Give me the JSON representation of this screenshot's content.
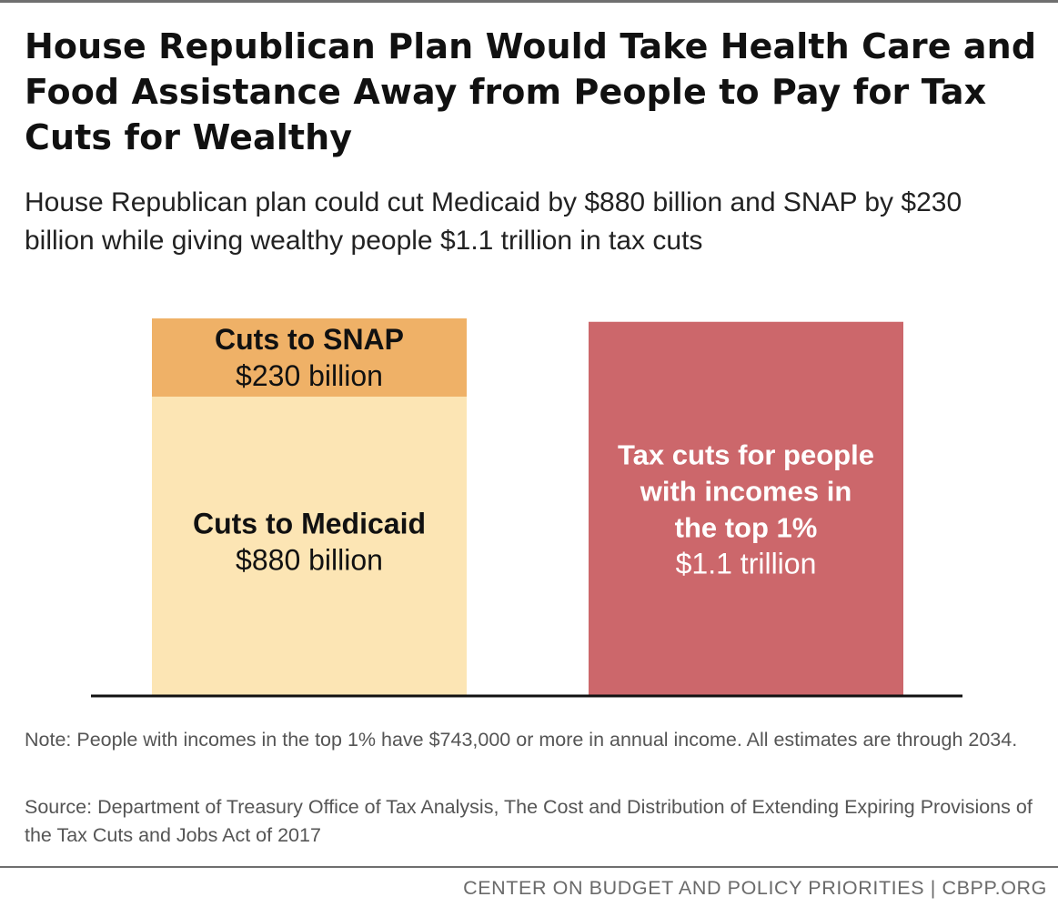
{
  "title": "House Republican Plan Would Take Health Care and Food Assistance Away from People to Pay for Tax Cuts for Wealthy",
  "subtitle": "House Republican plan could cut Medicaid by $880 billion and SNAP by $230 billion while giving wealthy people $1.1 trillion in tax cuts",
  "note": "Note: People with incomes in the top 1% have $743,000 or more in annual income. All estimates are through 2034.",
  "source": "Source: Department of Treasury Office of Tax Analysis, The Cost and Distribution of Extending Expiring Provisions of the Tax Cuts and Jobs Act of 2017",
  "footer": "CENTER ON BUDGET AND POLICY PRIORITIES | CBPP.ORG",
  "colors": {
    "medicaid": "#fce5b4",
    "snap": "#efb167",
    "tax_cuts": "#cc676b",
    "baseline": "#111111"
  },
  "chart_data": {
    "type": "bar",
    "stacked": true,
    "unit": "billions of dollars",
    "ylim": [
      0,
      1110
    ],
    "grid": false,
    "bars": [
      {
        "segments": [
          {
            "key": "medicaid",
            "label_lines": [
              "Cuts to Medicaid"
            ],
            "value_label": "$880 billion",
            "value": 880
          },
          {
            "key": "snap",
            "label_lines": [
              "Cuts to SNAP"
            ],
            "value_label": "$230 billion",
            "value": 230
          }
        ]
      },
      {
        "segments": [
          {
            "key": "tax_cuts",
            "label_lines": [
              "Tax cuts for people",
              "with incomes in",
              "the top 1%"
            ],
            "value_label": "$1.1 trillion",
            "value": 1100
          }
        ]
      }
    ]
  }
}
